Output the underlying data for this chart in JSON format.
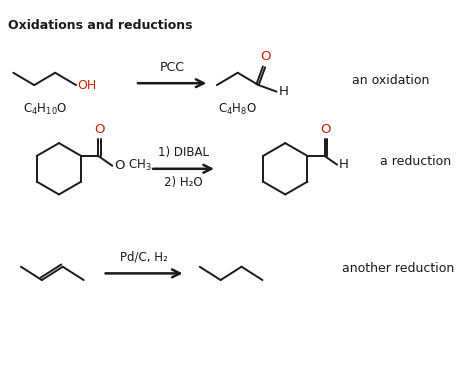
{
  "title": "Oxidations and reductions",
  "bg_color": "#ffffff",
  "black": "#1a1a1a",
  "red": "#cc2200",
  "reaction1": {
    "reagent": "PCC",
    "label_left_parts": [
      [
        "C",
        "4"
      ],
      [
        "H",
        "10"
      ],
      [
        "O",
        ""
      ]
    ],
    "label_right_parts": [
      [
        "C",
        "4"
      ],
      [
        "H",
        "8"
      ],
      [
        "O",
        ""
      ]
    ],
    "type_label": "an oxidation"
  },
  "reaction2": {
    "reagent_line1": "1) DIBAL",
    "reagent_line2": "2) H₂O",
    "type_label": "a reduction"
  },
  "reaction3": {
    "reagent": "Pd/C, H₂",
    "type_label": "another reduction"
  }
}
